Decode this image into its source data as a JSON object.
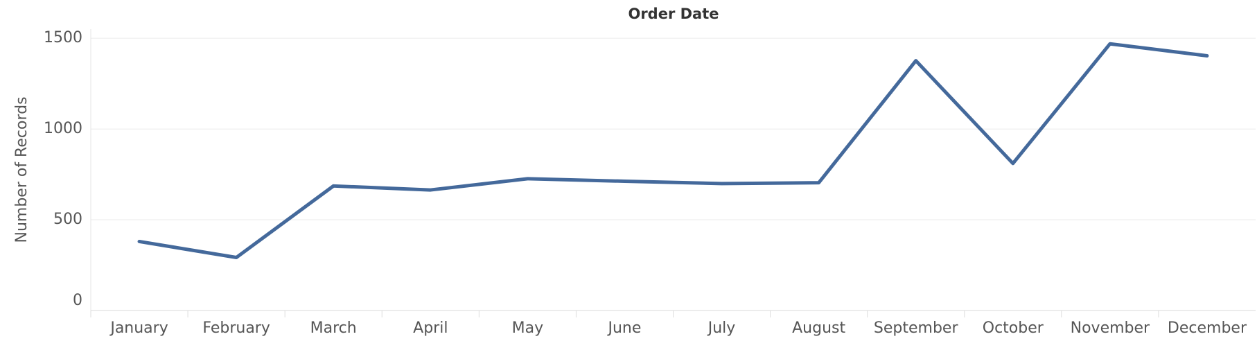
{
  "chart_data": {
    "type": "line",
    "x_label": "Order Date",
    "y_label": "Number of Records",
    "categories": [
      "January",
      "February",
      "March",
      "April",
      "May",
      "June",
      "July",
      "August",
      "September",
      "October",
      "November",
      "December"
    ],
    "series": [
      {
        "name": "Number of Records",
        "color": "#44699b",
        "values": [
          380,
          292,
          686,
          664,
          726,
          712,
          699,
          704,
          1376,
          810,
          1469,
          1403
        ]
      }
    ],
    "ylim": [
      0,
      1550
    ],
    "yticks": [
      0,
      500,
      1000,
      1500
    ],
    "grid": true
  }
}
